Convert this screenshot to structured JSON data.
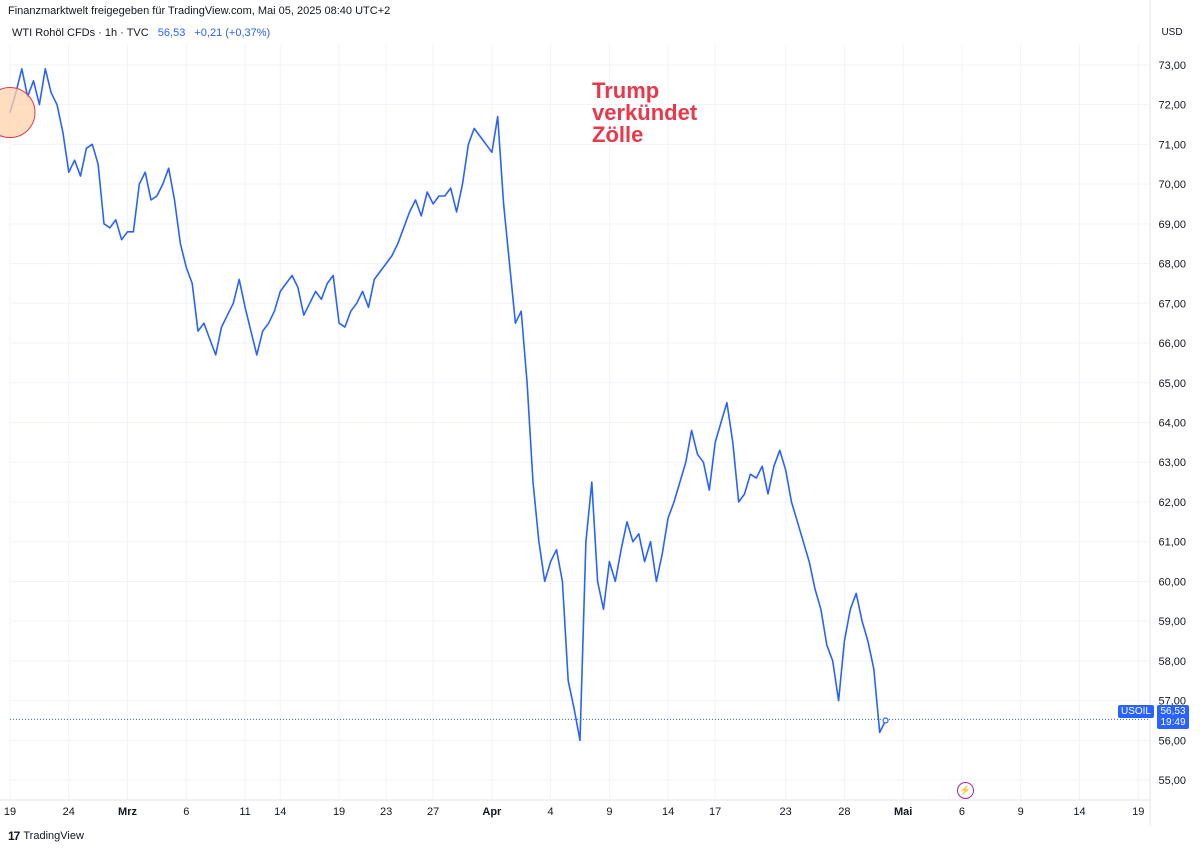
{
  "header": {
    "caption": "Finanzmarktwelt freigegeben für TradingView.com, Mai 05, 2025 08:40 UTC+2",
    "symbol_line": "WTI Rohöl CFDs · 1h · TVC",
    "price": "56,53",
    "change": "+0,21 (+0,37%)",
    "currency": "USD"
  },
  "price_tag": {
    "symbol": "USOIL",
    "value": "56,53",
    "countdown": "19:49"
  },
  "annotation": {
    "text": "Trump\nverkündet\nZölle"
  },
  "footer": {
    "brand": "TradingView",
    "logo": "17"
  },
  "icons": {
    "bolt": "lightning-icon",
    "logo": "tradingview-logo-icon"
  },
  "colors": {
    "line": "#2962ff",
    "annotation": "#e8384a",
    "highlight_fill": "#fdd3a8",
    "highlight_stroke": "#e8384a",
    "grid": "#f0f3fa"
  },
  "chart_data": {
    "type": "line",
    "title": "",
    "xlabel": "",
    "ylabel": "",
    "ylim": [
      54.5,
      73.5
    ],
    "y_ticks": [
      "55,00",
      "56,00",
      "57,00",
      "58,00",
      "59,00",
      "60,00",
      "61,00",
      "62,00",
      "63,00",
      "64,00",
      "65,00",
      "66,00",
      "67,00",
      "68,00",
      "69,00",
      "70,00",
      "71,00",
      "72,00",
      "73,00"
    ],
    "x_ticks": [
      "19",
      "24",
      "Mrz",
      "6",
      "11",
      "14",
      "19",
      "23",
      "27",
      "Apr",
      "4",
      "9",
      "14",
      "17",
      "23",
      "28",
      "Mai",
      "6",
      "9",
      "14",
      "19"
    ],
    "x_tick_positions": [
      0,
      5,
      10,
      15,
      20,
      23,
      28,
      32,
      36,
      41,
      46,
      51,
      56,
      60,
      66,
      71,
      76,
      81,
      86,
      91,
      96
    ],
    "x_range": [
      0,
      97
    ],
    "current_value": 56.53,
    "series": [
      {
        "values": [
          [
            0,
            71.8
          ],
          [
            0.5,
            72.3
          ],
          [
            1,
            72.9
          ],
          [
            1.5,
            72.2
          ],
          [
            2,
            72.6
          ],
          [
            2.5,
            72.0
          ],
          [
            3,
            72.9
          ],
          [
            3.5,
            72.3
          ],
          [
            4,
            72.0
          ],
          [
            4.5,
            71.3
          ],
          [
            5,
            70.3
          ],
          [
            5.5,
            70.6
          ],
          [
            6,
            70.2
          ],
          [
            6.5,
            70.9
          ],
          [
            7,
            71.0
          ],
          [
            7.5,
            70.5
          ],
          [
            8,
            69.0
          ],
          [
            8.5,
            68.9
          ],
          [
            9,
            69.1
          ],
          [
            9.5,
            68.6
          ],
          [
            10,
            68.8
          ],
          [
            10.5,
            68.8
          ],
          [
            11,
            70.0
          ],
          [
            11.5,
            70.3
          ],
          [
            12,
            69.6
          ],
          [
            12.5,
            69.7
          ],
          [
            13,
            70.0
          ],
          [
            13.5,
            70.4
          ],
          [
            14,
            69.6
          ],
          [
            14.5,
            68.5
          ],
          [
            15,
            67.9
          ],
          [
            15.5,
            67.5
          ],
          [
            16,
            66.3
          ],
          [
            16.5,
            66.5
          ],
          [
            17,
            66.1
          ],
          [
            17.5,
            65.7
          ],
          [
            18,
            66.4
          ],
          [
            18.5,
            66.7
          ],
          [
            19,
            67.0
          ],
          [
            19.5,
            67.6
          ],
          [
            20,
            66.9
          ],
          [
            20.5,
            66.3
          ],
          [
            21,
            65.7
          ],
          [
            21.5,
            66.3
          ],
          [
            22,
            66.5
          ],
          [
            22.5,
            66.8
          ],
          [
            23,
            67.3
          ],
          [
            23.5,
            67.5
          ],
          [
            24,
            67.7
          ],
          [
            24.5,
            67.4
          ],
          [
            25,
            66.7
          ],
          [
            25.5,
            67.0
          ],
          [
            26,
            67.3
          ],
          [
            26.5,
            67.1
          ],
          [
            27,
            67.5
          ],
          [
            27.5,
            67.7
          ],
          [
            28,
            66.5
          ],
          [
            28.5,
            66.4
          ],
          [
            29,
            66.8
          ],
          [
            29.5,
            67.0
          ],
          [
            30,
            67.3
          ],
          [
            30.5,
            66.9
          ],
          [
            31,
            67.6
          ],
          [
            31.5,
            67.8
          ],
          [
            32,
            68.0
          ],
          [
            32.5,
            68.2
          ],
          [
            33,
            68.5
          ],
          [
            33.5,
            68.9
          ],
          [
            34,
            69.3
          ],
          [
            34.5,
            69.6
          ],
          [
            35,
            69.2
          ],
          [
            35.5,
            69.8
          ],
          [
            36,
            69.5
          ],
          [
            36.5,
            69.7
          ],
          [
            37,
            69.7
          ],
          [
            37.5,
            69.9
          ],
          [
            38,
            69.3
          ],
          [
            38.5,
            70.0
          ],
          [
            39,
            71.0
          ],
          [
            39.5,
            71.4
          ],
          [
            40,
            71.2
          ],
          [
            40.5,
            71.0
          ],
          [
            41,
            70.8
          ],
          [
            41.5,
            71.7
          ],
          [
            42,
            69.5
          ],
          [
            42.5,
            68.0
          ],
          [
            43,
            66.5
          ],
          [
            43.5,
            66.8
          ],
          [
            44,
            65.0
          ],
          [
            44.5,
            62.5
          ],
          [
            45,
            61.0
          ],
          [
            45.5,
            60.0
          ],
          [
            46,
            60.5
          ],
          [
            46.5,
            60.8
          ],
          [
            47,
            60.0
          ],
          [
            47.5,
            57.5
          ],
          [
            48,
            56.8
          ],
          [
            48.5,
            56.0
          ],
          [
            49,
            61.0
          ],
          [
            49.5,
            62.5
          ],
          [
            50,
            60.0
          ],
          [
            50.5,
            59.3
          ],
          [
            51,
            60.5
          ],
          [
            51.5,
            60.0
          ],
          [
            52,
            60.8
          ],
          [
            52.5,
            61.5
          ],
          [
            53,
            61.0
          ],
          [
            53.5,
            61.2
          ],
          [
            54,
            60.5
          ],
          [
            54.5,
            61.0
          ],
          [
            55,
            60.0
          ],
          [
            55.5,
            60.7
          ],
          [
            56,
            61.6
          ],
          [
            56.5,
            62.0
          ],
          [
            57,
            62.5
          ],
          [
            57.5,
            63.0
          ],
          [
            58,
            63.8
          ],
          [
            58.5,
            63.2
          ],
          [
            59,
            63.0
          ],
          [
            59.5,
            62.3
          ],
          [
            60,
            63.5
          ],
          [
            60.5,
            64.0
          ],
          [
            61,
            64.5
          ],
          [
            61.5,
            63.5
          ],
          [
            62,
            62.0
          ],
          [
            62.5,
            62.2
          ],
          [
            63,
            62.7
          ],
          [
            63.5,
            62.6
          ],
          [
            64,
            62.9
          ],
          [
            64.5,
            62.2
          ],
          [
            65,
            62.9
          ],
          [
            65.5,
            63.3
          ],
          [
            66,
            62.8
          ],
          [
            66.5,
            62.0
          ],
          [
            67,
            61.5
          ],
          [
            67.5,
            61.0
          ],
          [
            68,
            60.5
          ],
          [
            68.5,
            59.8
          ],
          [
            69,
            59.3
          ],
          [
            69.5,
            58.4
          ],
          [
            70,
            58.0
          ],
          [
            70.5,
            57.0
          ],
          [
            71,
            58.5
          ],
          [
            71.5,
            59.3
          ],
          [
            72,
            59.7
          ],
          [
            72.5,
            59.0
          ],
          [
            73,
            58.5
          ],
          [
            73.5,
            57.8
          ],
          [
            74,
            56.2
          ],
          [
            74.5,
            56.5
          ]
        ]
      }
    ]
  }
}
